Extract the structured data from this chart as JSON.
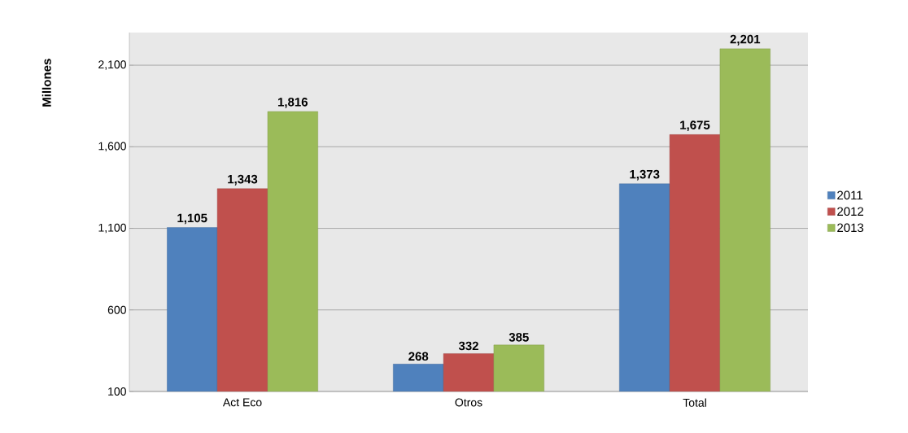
{
  "chart_data": {
    "type": "bar",
    "ylabel": "Millones",
    "categories": [
      "Act Eco",
      "Otros",
      "Total"
    ],
    "series": [
      {
        "name": "2011",
        "color": "#4f81bd",
        "values": [
          1105,
          268,
          1373
        ],
        "value_labels": [
          "1,105",
          "268",
          "1,373"
        ]
      },
      {
        "name": "2012",
        "color": "#c0504d",
        "values": [
          1343,
          332,
          1675
        ],
        "value_labels": [
          "1,343",
          "332",
          "1,675"
        ]
      },
      {
        "name": "2013",
        "color": "#9bbb59",
        "values": [
          1816,
          385,
          2201
        ],
        "value_labels": [
          "1,816",
          "385",
          "2,201"
        ]
      }
    ],
    "ylim": [
      100,
      2300
    ],
    "yticks": [
      {
        "value": 100,
        "label": "100"
      },
      {
        "value": 600,
        "label": "600"
      },
      {
        "value": 1100,
        "label": "1,100"
      },
      {
        "value": 1600,
        "label": "1,600"
      },
      {
        "value": 2100,
        "label": "2,100"
      }
    ],
    "grid": "y",
    "legend": "right"
  }
}
